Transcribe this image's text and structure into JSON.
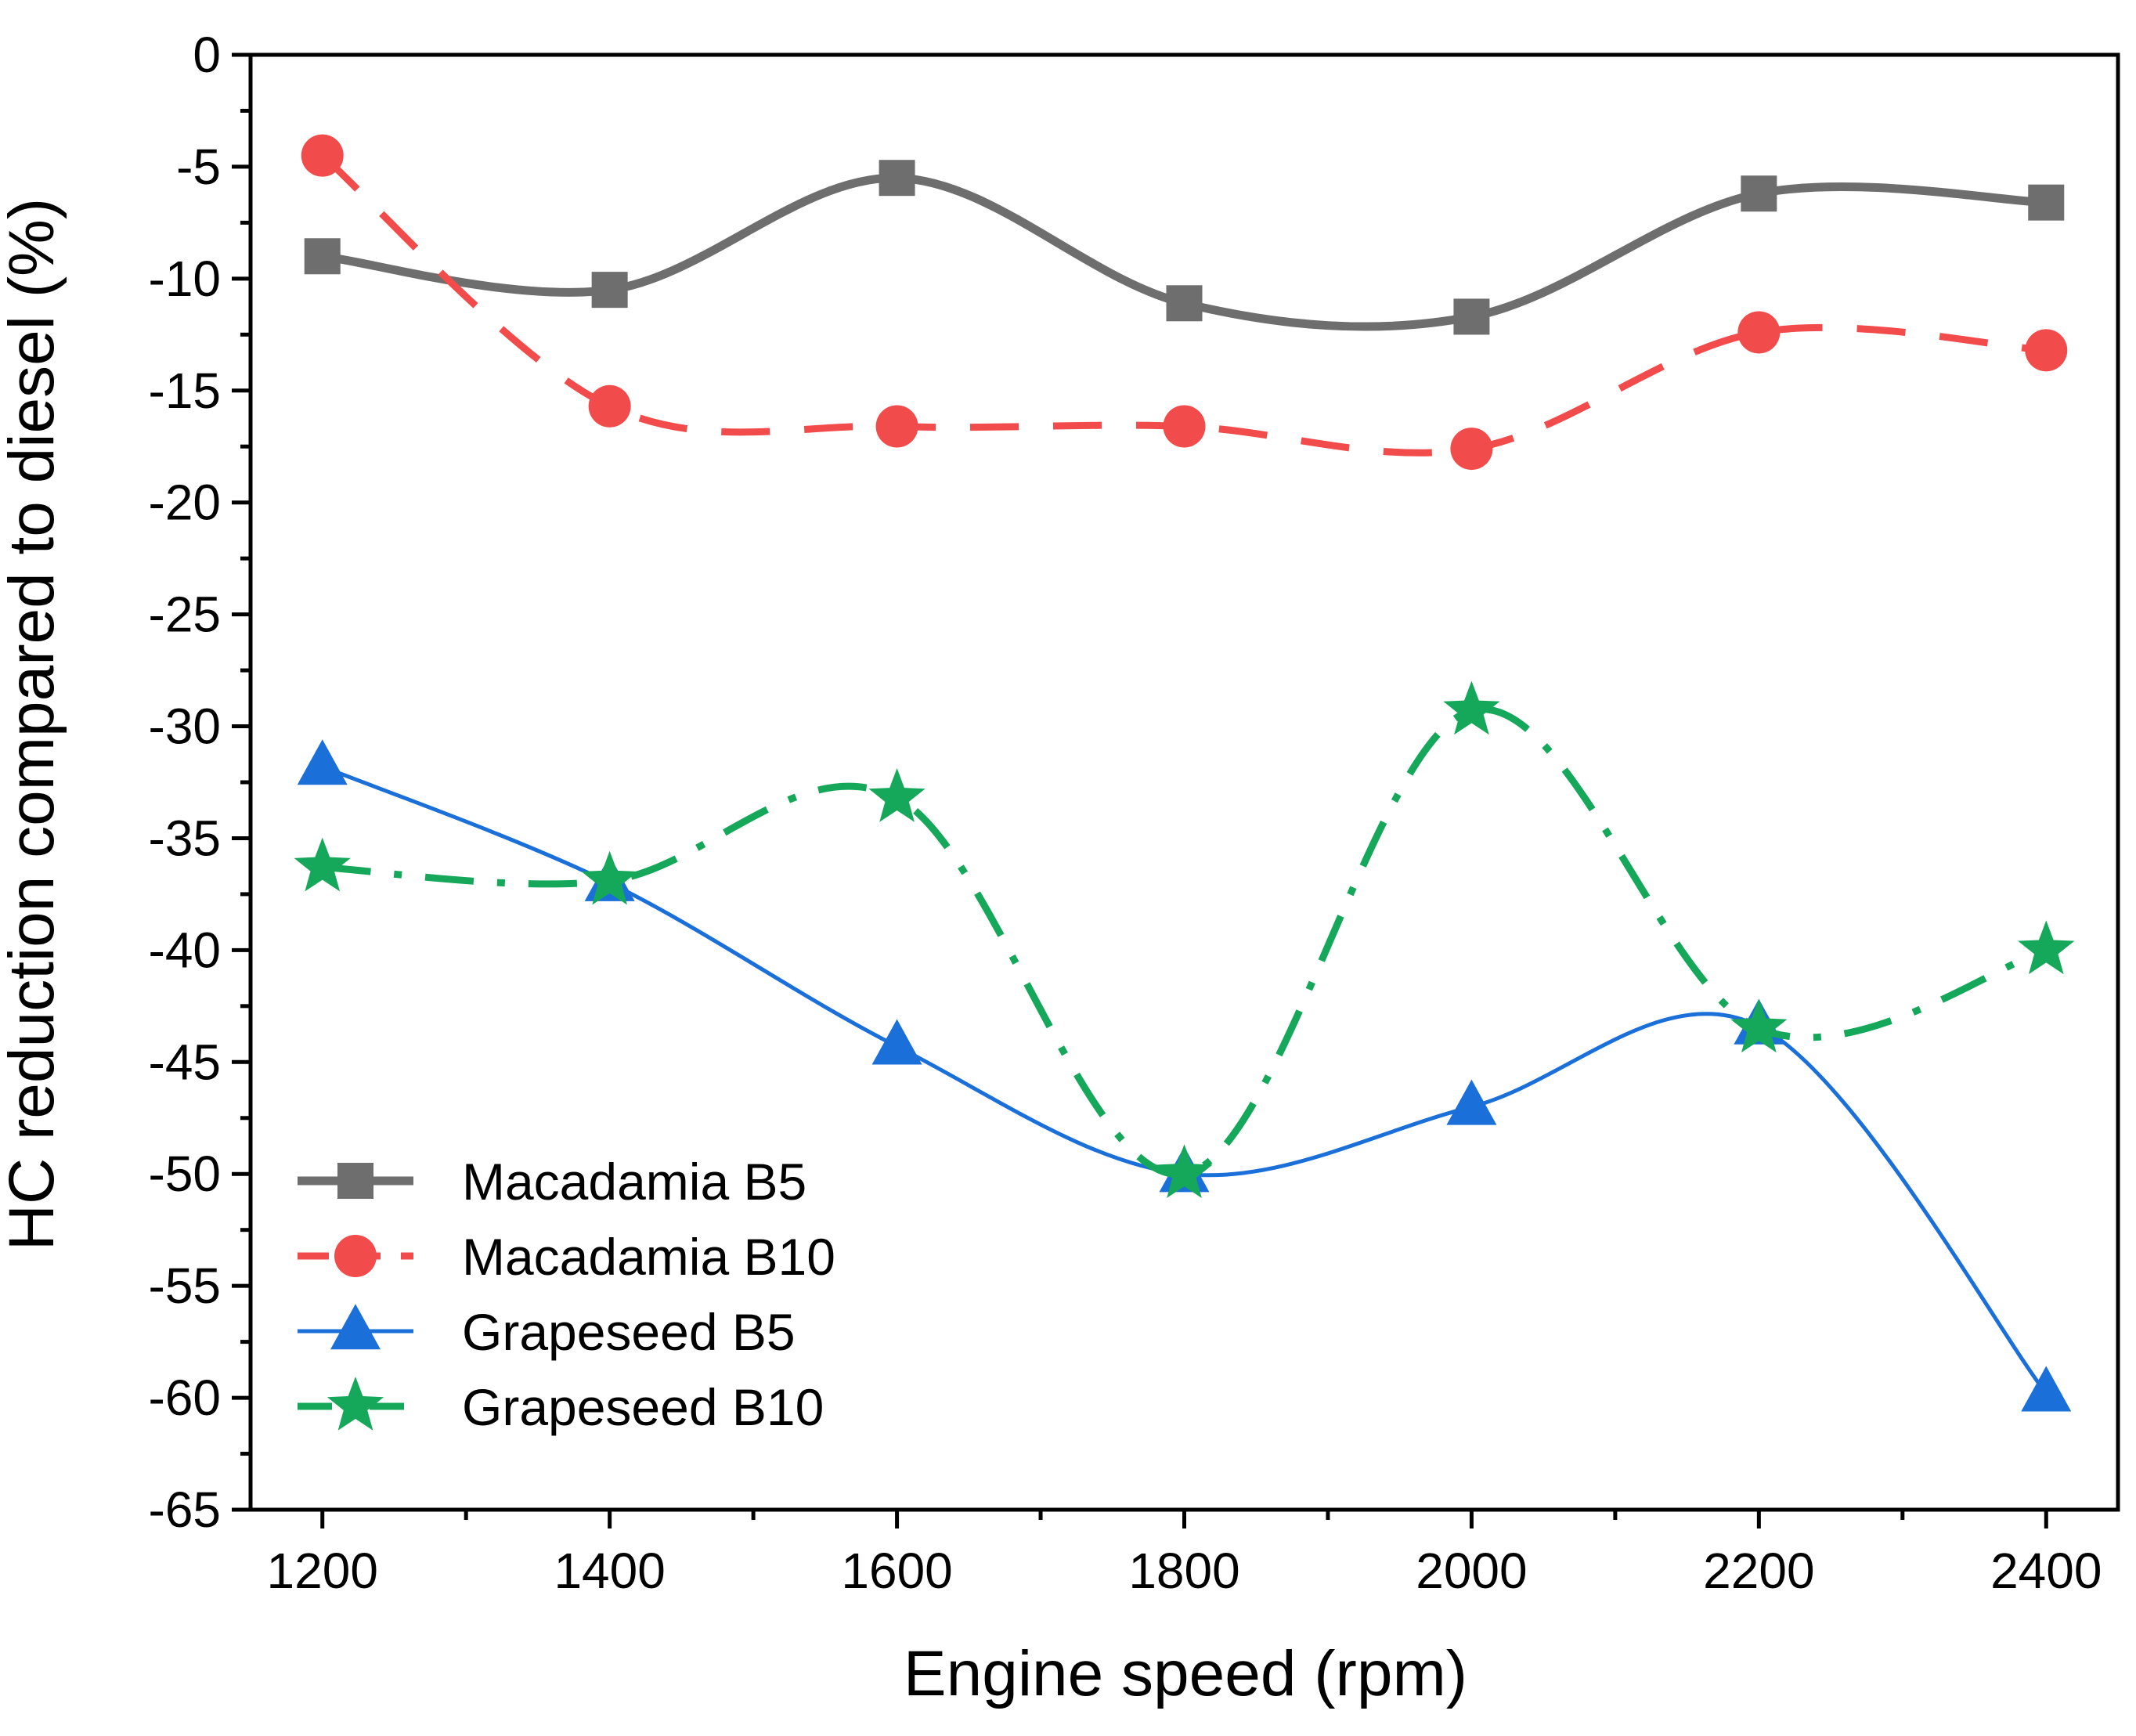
{
  "chart_data": {
    "type": "line",
    "title": "",
    "xlabel": "Engine speed (rpm)",
    "ylabel": "HC reduction compared to diesel (%)",
    "xlim": [
      1150,
      2450
    ],
    "ylim": [
      -65,
      0
    ],
    "xticks": [
      1200,
      1400,
      1600,
      1800,
      2000,
      2200,
      2400
    ],
    "yticks": [
      0,
      -5,
      -10,
      -15,
      -20,
      -25,
      -30,
      -35,
      -40,
      -45,
      -50,
      -55,
      -60,
      -65
    ],
    "x": [
      1200,
      1400,
      1600,
      1800,
      2000,
      2200,
      2400
    ],
    "legend_position": "bottom-left",
    "grid": false,
    "series": [
      {
        "name": "Macadamia B5",
        "values": [
          -9.0,
          -10.5,
          -5.5,
          -11.1,
          -11.7,
          -6.2,
          -6.6
        ],
        "color": "#6e6e6e",
        "marker": "square",
        "line_style": "solid"
      },
      {
        "name": "Macadamia B10",
        "values": [
          -4.5,
          -15.7,
          -16.6,
          -16.6,
          -17.6,
          -12.4,
          -13.2
        ],
        "color": "#f24b4b",
        "marker": "circle",
        "line_style": "dash"
      },
      {
        "name": "Grapeseed B5",
        "values": [
          -31.8,
          -37.0,
          -44.3,
          -50.0,
          -47.0,
          -43.4,
          -59.8
        ],
        "color": "#1a6fd9",
        "marker": "triangle",
        "line_style": "solid-thin"
      },
      {
        "name": "Grapeseed B10",
        "values": [
          -36.3,
          -36.9,
          -33.2,
          -50.0,
          -29.3,
          -43.5,
          -40.0
        ],
        "color": "#16a85a",
        "marker": "star",
        "line_style": "dashdot"
      }
    ]
  }
}
